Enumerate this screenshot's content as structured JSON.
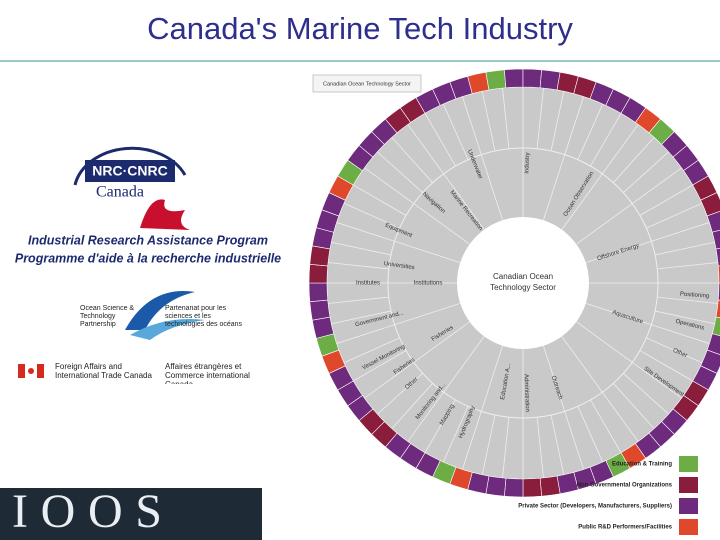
{
  "header": {
    "title": "Canada's Marine Tech Industry"
  },
  "logos": {
    "nrc": {
      "mark": "NRC·CNRC",
      "country": "Canada",
      "program_en": "Industrial Research Assistance Program",
      "program_fr": "Programme d'aide à la recherche industrielle"
    },
    "ostp": {
      "name_en": "Ocean Science & Technology Partnership",
      "name_fr": "Partenariat pour les sciences et les technologies des océans"
    },
    "dfait": {
      "name_en": "Foreign Affairs and International Trade Canada",
      "name_fr": "Affaires étrangères et Commerce international Canada"
    },
    "ioos": {
      "name": "IOOS"
    }
  },
  "wheel": {
    "tab": "Canadian Ocean Technology Sector",
    "center": "Canadian Ocean Technology Sector",
    "labels": [
      "Underwater",
      "Navigation",
      "Equipment",
      "Universities",
      "Institutes",
      "Institutions",
      "Government and...",
      "Vessel Monitoring",
      "Fisheries",
      "Other",
      "Monitoring and...",
      "Mapping",
      "Hydrography",
      "Fisheries",
      "Education A...",
      "Administration",
      "Outreach",
      "Aquaculture",
      "Offshore Energy",
      "Ocean Observation",
      "Marine Recreation",
      "Industry",
      "Positioning",
      "Operations",
      "Other",
      "Site Development"
    ],
    "legend": [
      {
        "name": "Education & Training",
        "color": "#6cae45"
      },
      {
        "name": "Non Governmental Organizations",
        "color": "#8a1c3c"
      },
      {
        "name": "Private Sector (Developers, Manufacturers, Suppliers)",
        "color": "#6e2a7c"
      },
      {
        "name": "Public R&D Performers/Facilities",
        "color": "#e0482c"
      }
    ]
  }
}
